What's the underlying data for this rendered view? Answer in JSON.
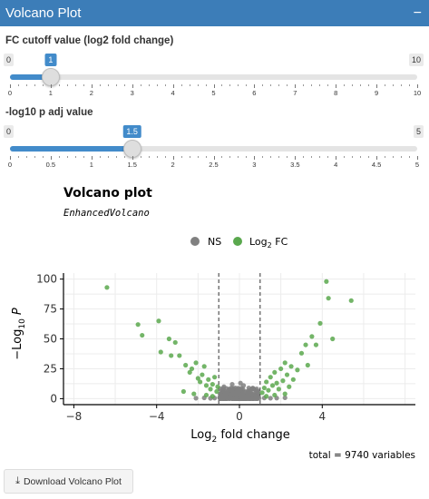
{
  "panel": {
    "title": "Volcano Plot",
    "collapse_icon": "minus-icon"
  },
  "fc_slider": {
    "label": "FC cutoff value (log2 fold change)",
    "min": 0,
    "max": 10,
    "value": 1,
    "min_label": "0",
    "max_label": "10",
    "value_label": "1",
    "tick_labels": [
      "0",
      "1",
      "2",
      "3",
      "4",
      "5",
      "6",
      "7",
      "8",
      "9",
      "10"
    ]
  },
  "p_slider": {
    "label": "-log10 p adj value",
    "min": 0,
    "max": 5,
    "value": 1.5,
    "min_label": "0",
    "max_label": "5",
    "value_label": "1.5",
    "tick_labels": [
      "0",
      "0.5",
      "1",
      "1.5",
      "2",
      "2.5",
      "3",
      "3.5",
      "4",
      "4.5",
      "5"
    ]
  },
  "chart_data": {
    "type": "scatter",
    "title": "Volcano plot",
    "subtitle": "EnhancedVolcano",
    "xlabel": "Log2 fold change",
    "ylabel": "-Log10 P",
    "xlim": [
      -8.5,
      8.5
    ],
    "ylim": [
      -5,
      105
    ],
    "x_ticks": [
      -8,
      -4,
      0,
      4
    ],
    "y_ticks": [
      0,
      25,
      50,
      75,
      100
    ],
    "cutoff_lines_x": [
      -1,
      1
    ],
    "grid": true,
    "legend": {
      "position": "top",
      "entries": [
        {
          "name": "NS",
          "color": "#808080"
        },
        {
          "name": "Log2 FC",
          "color": "#5aa84e"
        }
      ]
    },
    "caption": "total = 9740 variables",
    "series": [
      {
        "name": "NS",
        "color": "#808080",
        "points": [
          [
            -0.9,
            4
          ],
          [
            -0.8,
            2
          ],
          [
            -0.7,
            6
          ],
          [
            -0.6,
            3
          ],
          [
            -0.5,
            8
          ],
          [
            -0.4,
            1
          ],
          [
            -0.3,
            5
          ],
          [
            -0.2,
            9
          ],
          [
            -0.1,
            2
          ],
          [
            0.0,
            7
          ],
          [
            0.1,
            3
          ],
          [
            0.2,
            11
          ],
          [
            0.3,
            1
          ],
          [
            0.4,
            6
          ],
          [
            0.5,
            4
          ],
          [
            0.6,
            2
          ],
          [
            0.7,
            8
          ],
          [
            0.8,
            3
          ],
          [
            0.9,
            5
          ],
          [
            -0.95,
            1
          ],
          [
            -0.75,
            10
          ],
          [
            -0.55,
            0.5
          ],
          [
            -0.35,
            12
          ],
          [
            -0.15,
            1.5
          ],
          [
            0.05,
            13
          ],
          [
            0.25,
            0.5
          ],
          [
            0.45,
            9
          ],
          [
            0.65,
            1
          ],
          [
            0.85,
            6
          ],
          [
            0.95,
            0.3
          ],
          [
            -0.85,
            7
          ],
          [
            -0.65,
            1
          ],
          [
            -0.45,
            3
          ],
          [
            -0.25,
            0.3
          ],
          [
            -0.05,
            4
          ],
          [
            0.15,
            0.2
          ],
          [
            0.35,
            2
          ],
          [
            0.55,
            7
          ],
          [
            0.75,
            0.4
          ],
          [
            -0.9,
            0.2
          ],
          [
            -0.6,
            0.8
          ],
          [
            -0.2,
            0.1
          ],
          [
            0.2,
            0.6
          ],
          [
            0.6,
            0.3
          ],
          [
            0.9,
            1.2
          ],
          [
            -1.2,
            0.5
          ],
          [
            -1.4,
            0.3
          ],
          [
            1.2,
            0.6
          ],
          [
            1.5,
            0.4
          ],
          [
            -1.7,
            0.7
          ],
          [
            1.8,
            0.5
          ],
          [
            -2.1,
            0.4
          ],
          [
            2.2,
            0.8
          ]
        ]
      },
      {
        "name": "Log2 FC",
        "color": "#5aa84e",
        "points": [
          [
            -6.4,
            93
          ],
          [
            -4.9,
            62
          ],
          [
            -4.7,
            53
          ],
          [
            -3.9,
            65
          ],
          [
            -3.8,
            39
          ],
          [
            -3.4,
            50
          ],
          [
            -3.3,
            36
          ],
          [
            -3.1,
            47
          ],
          [
            -2.9,
            36
          ],
          [
            -2.6,
            28
          ],
          [
            -2.4,
            22
          ],
          [
            -2.3,
            25
          ],
          [
            -2.1,
            30
          ],
          [
            -2.0,
            17
          ],
          [
            -1.9,
            14
          ],
          [
            -1.8,
            20
          ],
          [
            -1.7,
            27
          ],
          [
            -1.6,
            11
          ],
          [
            -1.5,
            16
          ],
          [
            -1.4,
            8
          ],
          [
            -1.3,
            12
          ],
          [
            -1.2,
            18
          ],
          [
            -1.1,
            6
          ],
          [
            -1.05,
            10
          ],
          [
            -2.7,
            6
          ],
          [
            -2.2,
            4
          ],
          [
            -1.6,
            3
          ],
          [
            -1.3,
            2
          ],
          [
            1.1,
            5
          ],
          [
            1.2,
            9
          ],
          [
            1.3,
            14
          ],
          [
            1.4,
            7
          ],
          [
            1.5,
            18
          ],
          [
            1.6,
            11
          ],
          [
            1.7,
            22
          ],
          [
            1.8,
            13
          ],
          [
            1.9,
            8
          ],
          [
            2.0,
            25
          ],
          [
            2.1,
            15
          ],
          [
            2.2,
            30
          ],
          [
            2.3,
            20
          ],
          [
            2.4,
            10
          ],
          [
            2.5,
            27
          ],
          [
            2.6,
            16
          ],
          [
            2.8,
            24
          ],
          [
            3.0,
            38
          ],
          [
            3.2,
            45
          ],
          [
            3.3,
            28
          ],
          [
            3.5,
            52
          ],
          [
            3.7,
            45
          ],
          [
            3.9,
            63
          ],
          [
            4.2,
            98
          ],
          [
            4.3,
            84
          ],
          [
            4.5,
            50
          ],
          [
            5.4,
            82
          ],
          [
            1.3,
            2
          ],
          [
            1.7,
            3
          ],
          [
            2.2,
            4
          ]
        ]
      }
    ]
  },
  "download_button": {
    "icon": "download-icon",
    "label": "Download Volcano Plot"
  }
}
